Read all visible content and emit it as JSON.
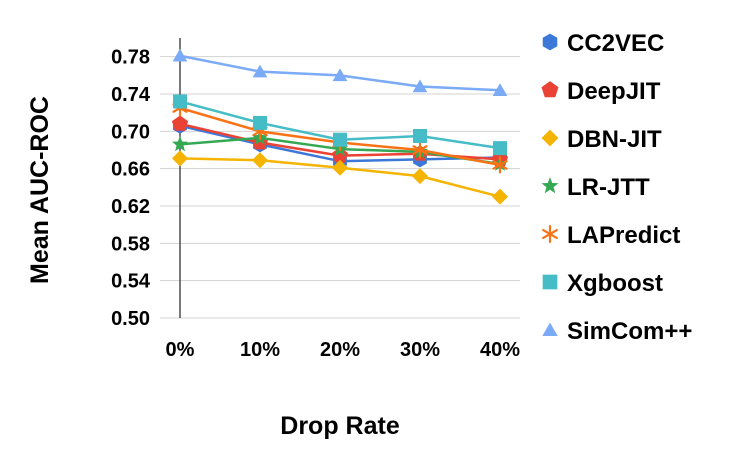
{
  "chart_data": {
    "type": "line",
    "title": "",
    "xlabel": "Drop Rate",
    "ylabel": "Mean AUC-ROC",
    "categories": [
      "0%",
      "10%",
      "20%",
      "30%",
      "40%"
    ],
    "ylim": [
      0.5,
      0.8
    ],
    "yticks": [
      "0.50",
      "0.54",
      "0.58",
      "0.62",
      "0.66",
      "0.70",
      "0.74",
      "0.78"
    ],
    "grid": true,
    "legend_position": "right",
    "series": [
      {
        "name": "CC2VEC",
        "color": "#3c78d8",
        "marker": "hexagon",
        "values": [
          0.706,
          0.686,
          0.668,
          0.67,
          0.672
        ]
      },
      {
        "name": "DeepJIT",
        "color": "#ea4335",
        "marker": "pentagon",
        "values": [
          0.708,
          0.688,
          0.674,
          0.676,
          0.67
        ]
      },
      {
        "name": "DBN-JIT",
        "color": "#f4b400",
        "marker": "diamond",
        "values": [
          0.671,
          0.669,
          0.661,
          0.652,
          0.63
        ]
      },
      {
        "name": "LR-JTT",
        "color": "#34a853",
        "marker": "star",
        "values": [
          0.686,
          0.693,
          0.681,
          0.678,
          0.665
        ]
      },
      {
        "name": "LAPredict",
        "color": "#f97316",
        "marker": "asterisk",
        "values": [
          0.725,
          0.7,
          0.688,
          0.68,
          0.664
        ]
      },
      {
        "name": "Xgboost",
        "color": "#46bdc6",
        "marker": "square",
        "values": [
          0.732,
          0.709,
          0.691,
          0.695,
          0.682
        ]
      },
      {
        "name": "SimCom++",
        "color": "#7baaf7",
        "marker": "triangle",
        "values": [
          0.781,
          0.764,
          0.76,
          0.748,
          0.744
        ]
      }
    ]
  }
}
